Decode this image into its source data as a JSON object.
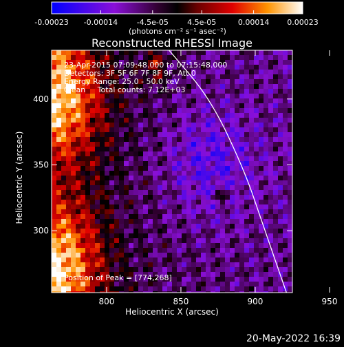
{
  "chart_data": {
    "type": "heatmap",
    "title": "Reconstructed RHESSI Image",
    "xlabel": "Heliocentric X (arcsec)",
    "ylabel": "Heliocentric Y (arcsec)",
    "xlim": [
      763,
      925
    ],
    "ylim": [
      253,
      437
    ],
    "x_ticks": [
      "800",
      "850",
      "900",
      "950"
    ],
    "x_tick_values": [
      800,
      850,
      900,
      950
    ],
    "y_ticks": [
      "300",
      "350",
      "400"
    ],
    "y_tick_values": [
      300,
      350,
      400
    ],
    "colorbar": {
      "range": [
        -0.00023,
        0.00023
      ],
      "tick_labels": [
        "-0.00023",
        "-0.00014",
        "-4.5e-05",
        "4.5e-05",
        "0.00014",
        "0.00023"
      ],
      "tick_values": [
        -0.00023,
        -0.00014,
        -4.5e-05,
        4.5e-05,
        0.00014,
        0.00023
      ],
      "units_label": "(photons cm⁻² s⁻¹ asec⁻²)"
    },
    "annotations": [
      "23-Apr-2015 07:09:48.000 to 07:15:48.000",
      "Detectors: 3F 5F 6F 7F 8F 9F, Att 0",
      "Energy Range: 25.0 - 50.0 keV",
      "Clean     Total counts: 7.12E+03"
    ],
    "peak_label": "Position of Peak = [774,268]",
    "limb_curve": {
      "description": "white solar limb line",
      "points": [
        [
          842,
          437
        ],
        [
          870,
          400
        ],
        [
          893,
          345
        ],
        [
          905,
          305
        ],
        [
          921,
          253
        ]
      ]
    }
  },
  "footer": {
    "date": "20-May-2022 16:39"
  },
  "colors": {
    "background": "#000000",
    "foreground": "#ffffff"
  }
}
